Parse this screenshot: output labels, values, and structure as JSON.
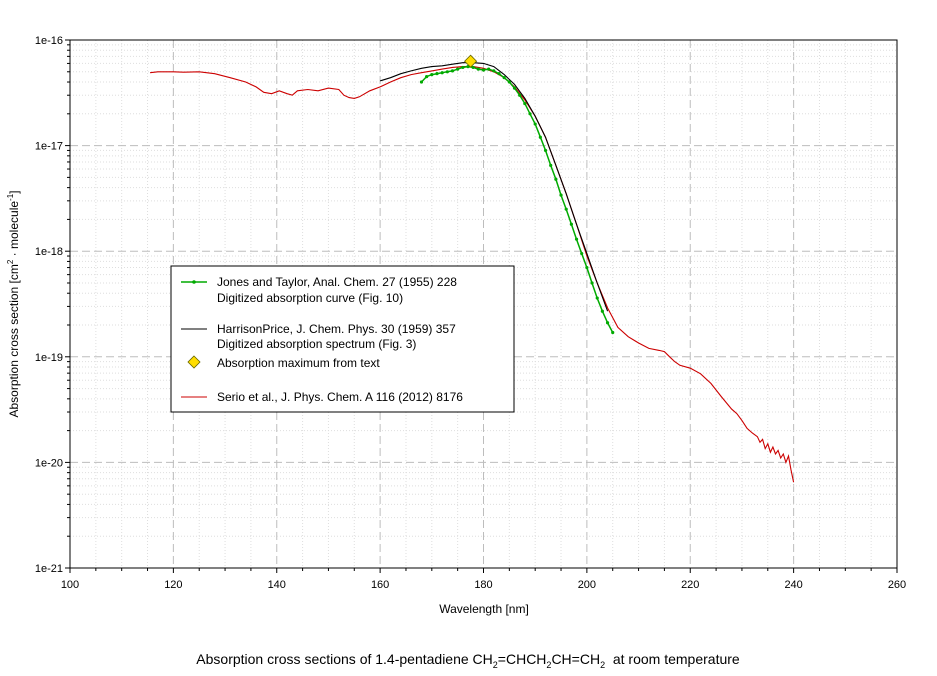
{
  "chart_data": {
    "type": "line",
    "xlabel": "Wavelength [nm]",
    "ylabel": {
      "prefix": "Absorption cross section [cm",
      "sup1": "2",
      "middle": " · molecule",
      "sup2": "-1",
      "suffix": "]"
    },
    "caption": {
      "t1": "Absorption cross sections of 1.4-pentadiene CH",
      "s1": "2",
      "t2": "=CHCH",
      "s2": "2",
      "t3": "CH=CH",
      "s3": "2",
      "t4": "  at room temperature"
    },
    "xlim": [
      100,
      260
    ],
    "ylim": [
      1e-21,
      1e-16
    ],
    "yscale": "log",
    "grid": true,
    "legend_position": "left-center",
    "xticks": [
      "100",
      "120",
      "140",
      "160",
      "180",
      "200",
      "220",
      "240",
      "260"
    ],
    "yticks": [
      "1e-21",
      "1e-20",
      "1e-19",
      "1e-18",
      "1e-17",
      "1e-16"
    ],
    "series": [
      {
        "name": "Jones and Taylor, Anal. Chem. 27 (1955) 228",
        "name2": "Digitized absorption curve (Fig. 10)",
        "color": "#00aa00",
        "marker": "dot",
        "points": [
          [
            168,
            4e-17
          ],
          [
            169,
            4.5e-17
          ],
          [
            170,
            4.7e-17
          ],
          [
            171,
            4.8e-17
          ],
          [
            172,
            4.9e-17
          ],
          [
            173,
            5e-17
          ],
          [
            174,
            5.1e-17
          ],
          [
            175,
            5.3e-17
          ],
          [
            176,
            5.5e-17
          ],
          [
            177,
            5.6e-17
          ],
          [
            178,
            5.5e-17
          ],
          [
            179,
            5.3e-17
          ],
          [
            180,
            5.2e-17
          ],
          [
            181,
            5.3e-17
          ],
          [
            182,
            5.1e-17
          ],
          [
            183,
            4.8e-17
          ],
          [
            184,
            4.4e-17
          ],
          [
            185,
            4e-17
          ],
          [
            186,
            3.5e-17
          ],
          [
            187,
            3e-17
          ],
          [
            188,
            2.5e-17
          ],
          [
            189,
            2e-17
          ],
          [
            190,
            1.6e-17
          ],
          [
            191,
            1.2e-17
          ],
          [
            192,
            9e-18
          ],
          [
            193,
            6.5e-18
          ],
          [
            194,
            4.8e-18
          ],
          [
            195,
            3.4e-18
          ],
          [
            196,
            2.5e-18
          ],
          [
            197,
            1.8e-18
          ],
          [
            198,
            1.3e-18
          ],
          [
            199,
            9.5e-19
          ],
          [
            200,
            7e-19
          ],
          [
            201,
            5e-19
          ],
          [
            202,
            3.6e-19
          ],
          [
            203,
            2.7e-19
          ],
          [
            204,
            2.1e-19
          ],
          [
            205,
            1.7e-19
          ]
        ]
      },
      {
        "name": "HarrisonPrice, J. Chem. Phys. 30 (1959) 357",
        "name2": "Digitized absorption spectrum (Fig. 3)",
        "color": "#000000",
        "marker": "none",
        "points": [
          [
            160,
            4.1e-17
          ],
          [
            162,
            4.4e-17
          ],
          [
            164,
            4.8e-17
          ],
          [
            166,
            5.1e-17
          ],
          [
            168,
            5.4e-17
          ],
          [
            170,
            5.6e-17
          ],
          [
            172,
            5.7e-17
          ],
          [
            174,
            5.9e-17
          ],
          [
            176,
            6.1e-17
          ],
          [
            178,
            6.1e-17
          ],
          [
            180,
            6e-17
          ],
          [
            182,
            5.6e-17
          ],
          [
            184,
            4.7e-17
          ],
          [
            186,
            3.8e-17
          ],
          [
            188,
            2.8e-17
          ],
          [
            190,
            1.9e-17
          ],
          [
            192,
            1.2e-17
          ],
          [
            194,
            6.5e-18
          ],
          [
            196,
            3.5e-18
          ],
          [
            198,
            1.8e-18
          ],
          [
            200,
            9.5e-19
          ],
          [
            202,
            5e-19
          ],
          [
            204,
            2.7e-19
          ]
        ]
      },
      {
        "name": "Absorption maximum from text",
        "color": "#ffdd00",
        "marker": "diamond",
        "points": [
          [
            177.5,
            6.3e-17
          ]
        ]
      },
      {
        "name": "Serio et al., J. Phys. Chem. A 116 (2012) 8176",
        "color": "#cc0000",
        "marker": "none",
        "points": [
          [
            115.5,
            4.9e-17
          ],
          [
            117,
            5e-17
          ],
          [
            120,
            5e-17
          ],
          [
            122,
            4.95e-17
          ],
          [
            125,
            5e-17
          ],
          [
            128,
            4.8e-17
          ],
          [
            131,
            4.4e-17
          ],
          [
            134,
            4e-17
          ],
          [
            136,
            3.6e-17
          ],
          [
            137.5,
            3.2e-17
          ],
          [
            139,
            3.1e-17
          ],
          [
            140.5,
            3.3e-17
          ],
          [
            142,
            3.1e-17
          ],
          [
            143,
            3e-17
          ],
          [
            144,
            3.3e-17
          ],
          [
            146,
            3.4e-17
          ],
          [
            148,
            3.3e-17
          ],
          [
            150,
            3.5e-17
          ],
          [
            152,
            3.4e-17
          ],
          [
            153,
            3e-17
          ],
          [
            154,
            2.85e-17
          ],
          [
            155,
            2.8e-17
          ],
          [
            156,
            2.9e-17
          ],
          [
            158,
            3.3e-17
          ],
          [
            160,
            3.6e-17
          ],
          [
            162,
            4e-17
          ],
          [
            164,
            4.4e-17
          ],
          [
            166,
            4.7e-17
          ],
          [
            168,
            4.9e-17
          ],
          [
            170,
            5.1e-17
          ],
          [
            172,
            5.3e-17
          ],
          [
            174,
            5.5e-17
          ],
          [
            176,
            5.6e-17
          ],
          [
            178,
            5.6e-17
          ],
          [
            180,
            5.4e-17
          ],
          [
            182,
            5e-17
          ],
          [
            184,
            4.4e-17
          ],
          [
            186,
            3.6e-17
          ],
          [
            188,
            2.7e-17
          ],
          [
            190,
            1.9e-17
          ],
          [
            192,
            1.2e-17
          ],
          [
            194,
            6.5e-18
          ],
          [
            196,
            3.5e-18
          ],
          [
            198,
            1.8e-18
          ],
          [
            200,
            9e-19
          ],
          [
            202,
            5e-19
          ],
          [
            204,
            2.9e-19
          ],
          [
            206,
            1.9e-19
          ],
          [
            208,
            1.55e-19
          ],
          [
            210,
            1.35e-19
          ],
          [
            212,
            1.2e-19
          ],
          [
            214,
            1.15e-19
          ],
          [
            215,
            1.12e-19
          ],
          [
            216,
            1e-19
          ],
          [
            217,
            9e-20
          ],
          [
            218,
            8.3e-20
          ],
          [
            220,
            7.8e-20
          ],
          [
            222,
            6.9e-20
          ],
          [
            224,
            5.6e-20
          ],
          [
            226,
            4.2e-20
          ],
          [
            228,
            3.2e-20
          ],
          [
            229,
            2.9e-20
          ],
          [
            230,
            2.5e-20
          ],
          [
            231,
            2.1e-20
          ],
          [
            232,
            1.9e-20
          ],
          [
            233,
            1.75e-20
          ],
          [
            233.5,
            1.55e-20
          ],
          [
            234,
            1.65e-20
          ],
          [
            234.5,
            1.35e-20
          ],
          [
            235,
            1.5e-20
          ],
          [
            235.5,
            1.25e-20
          ],
          [
            236,
            1.4e-20
          ],
          [
            236.5,
            1.2e-20
          ],
          [
            237,
            1.3e-20
          ],
          [
            237.5,
            1.1e-20
          ],
          [
            238,
            1.2e-20
          ],
          [
            238.5,
            1e-20
          ],
          [
            239,
            1.15e-20
          ],
          [
            239.5,
            8.5e-21
          ],
          [
            240,
            6.5e-21
          ]
        ]
      }
    ]
  }
}
